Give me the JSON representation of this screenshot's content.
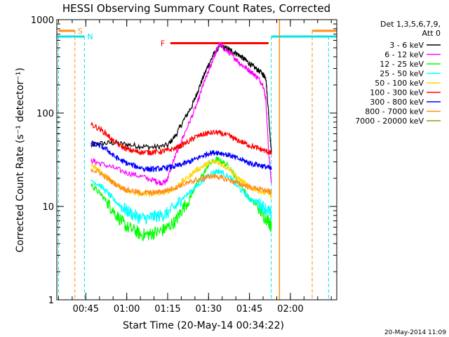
{
  "chart_data": {
    "type": "line",
    "title": "HESSI Observing Summary Count Rates, Corrected",
    "xlabel": "Start Time (20-May-14 00:34:22)",
    "ylabel": "Corrected Count Rate (s⁻¹ detector⁻¹)",
    "yscale": "log",
    "ylim": [
      1,
      1000
    ],
    "xlim_minutes": [
      34.3667,
      137
    ],
    "x_tick_values": [
      45,
      60,
      75,
      90,
      105,
      120
    ],
    "x_tick_labels": [
      "00:45",
      "01:00",
      "01:15",
      "01:30",
      "01:45",
      "02:00"
    ],
    "y_tick_values": [
      1,
      10,
      100,
      1000
    ],
    "y_tick_labels": [
      "1",
      "10",
      "100",
      "1000"
    ],
    "grid": false,
    "legend_position": "right",
    "legend_header": [
      "Det 1,3,5,6,7,9,",
      "Att 0"
    ],
    "timestamp": "20-May-2014 11:09",
    "series": [
      {
        "name": "3 - 6 keV",
        "color": "#000000",
        "x": [
          47,
          50,
          55,
          60,
          65,
          70,
          75,
          78,
          81,
          84,
          86,
          88,
          90,
          92,
          94,
          96,
          98,
          100,
          102,
          104,
          106,
          108,
          110,
          111,
          112,
          113
        ],
        "y": [
          45,
          47,
          48,
          46,
          44,
          43,
          45,
          58,
          85,
          120,
          170,
          240,
          330,
          430,
          520,
          500,
          470,
          440,
          400,
          360,
          320,
          290,
          260,
          240,
          100,
          38
        ]
      },
      {
        "name": "6 - 12 keV",
        "color": "#ff00ff",
        "x": [
          47,
          50,
          55,
          60,
          65,
          70,
          72,
          74,
          75,
          77,
          80,
          83,
          86,
          88,
          90,
          92,
          94,
          96,
          98,
          100,
          102,
          104,
          106,
          108,
          110,
          111,
          112,
          113
        ],
        "y": [
          31,
          29,
          26,
          23,
          21,
          19,
          18,
          18,
          20,
          30,
          50,
          80,
          130,
          200,
          280,
          400,
          550,
          480,
          430,
          380,
          330,
          300,
          270,
          240,
          200,
          140,
          40,
          18
        ]
      },
      {
        "name": "12 - 25 keV",
        "color": "#00ff00",
        "x": [
          47,
          50,
          53,
          55,
          58,
          60,
          63,
          65,
          68,
          70,
          73,
          75,
          78,
          80,
          83,
          85,
          88,
          90,
          93,
          95,
          98,
          100,
          103,
          105,
          108,
          110,
          112,
          113
        ],
        "y": [
          17,
          14,
          11,
          9,
          7,
          6,
          5.5,
          5,
          5,
          5.2,
          5.5,
          6,
          7,
          9,
          12,
          16,
          22,
          28,
          32,
          30,
          26,
          20,
          15,
          12,
          10,
          8,
          7,
          6
        ]
      },
      {
        "name": "25 - 50 keV",
        "color": "#00ffff",
        "x": [
          47,
          50,
          53,
          55,
          58,
          60,
          63,
          65,
          68,
          70,
          73,
          75,
          78,
          80,
          83,
          85,
          88,
          90,
          93,
          95,
          98,
          100,
          103,
          105,
          108,
          110,
          112,
          113
        ],
        "y": [
          19,
          17,
          14,
          12,
          10,
          9,
          8,
          7.5,
          7.5,
          7.8,
          8,
          8.5,
          10,
          12,
          14,
          16,
          19,
          22,
          24,
          23,
          20,
          17,
          14,
          12,
          11,
          10,
          9,
          8
        ]
      },
      {
        "name": "50 - 100 keV",
        "color": "#ffd700",
        "x": [
          47,
          50,
          53,
          55,
          58,
          60,
          63,
          65,
          68,
          70,
          73,
          75,
          78,
          80,
          83,
          85,
          88,
          90,
          93,
          95,
          98,
          100,
          103,
          105,
          108,
          110,
          112,
          113
        ],
        "y": [
          28,
          24,
          20,
          18,
          16,
          15,
          14,
          13.5,
          13.5,
          13.8,
          14,
          14.5,
          16,
          18,
          21,
          24,
          27,
          29,
          30,
          28,
          25,
          21,
          18,
          16,
          15,
          14,
          14,
          13
        ]
      },
      {
        "name": "100 - 300 keV",
        "color": "#ff0000",
        "x": [
          47,
          50,
          53,
          55,
          58,
          60,
          63,
          65,
          68,
          70,
          73,
          75,
          78,
          80,
          83,
          85,
          88,
          90,
          93,
          95,
          98,
          100,
          103,
          105,
          108,
          110,
          112,
          113
        ],
        "y": [
          75,
          68,
          58,
          50,
          44,
          41,
          39,
          38,
          38,
          38,
          39,
          40,
          42,
          45,
          50,
          55,
          59,
          61,
          62,
          60,
          56,
          52,
          48,
          45,
          42,
          40,
          38,
          37
        ]
      },
      {
        "name": "300 - 800 keV",
        "color": "#0000ff",
        "x": [
          47,
          50,
          53,
          55,
          58,
          60,
          63,
          65,
          68,
          70,
          73,
          75,
          78,
          80,
          83,
          85,
          88,
          90,
          93,
          95,
          98,
          100,
          103,
          105,
          108,
          110,
          112,
          113
        ],
        "y": [
          47,
          45,
          40,
          35,
          31,
          29,
          27,
          26,
          25,
          25,
          25.5,
          26,
          27,
          28,
          30,
          32,
          35,
          37,
          38,
          37,
          35,
          33,
          31,
          29,
          28,
          27,
          26,
          25
        ]
      },
      {
        "name": "800 - 7000 keV",
        "color": "#ff8c1a",
        "x": [
          47,
          50,
          53,
          55,
          58,
          60,
          63,
          65,
          68,
          70,
          73,
          75,
          78,
          80,
          83,
          85,
          88,
          90,
          93,
          95,
          98,
          100,
          103,
          105,
          108,
          110,
          112,
          113
        ],
        "y": [
          25,
          23,
          20,
          18,
          16,
          15,
          14.5,
          14,
          14,
          14,
          14.5,
          15,
          16,
          17,
          18,
          19,
          20,
          21,
          21,
          20,
          19,
          18,
          17,
          16,
          15.5,
          15,
          14.5,
          14
        ]
      },
      {
        "name": "7000 - 20000 keV",
        "color": "#9a9a00",
        "x": [],
        "y": []
      }
    ],
    "annotations": [
      {
        "label": "S",
        "color": "#ff8c1a",
        "bars": [
          [
            35,
            41
          ],
          [
            128,
            137
          ]
        ],
        "bar_y": 760,
        "vlines": [
          41,
          128
        ]
      },
      {
        "label": "N",
        "color": "#00e5e5",
        "bars": [
          [
            34.5,
            44.5
          ],
          [
            113,
            137
          ]
        ],
        "bar_y": 660,
        "vlines": [
          35,
          44.5,
          113,
          134
        ]
      },
      {
        "label": "F",
        "color": "#ff0000",
        "bars": [
          [
            76,
            112
          ]
        ],
        "bar_y": 560,
        "vlines": []
      }
    ],
    "extra_vlines": [
      {
        "color": "#ff8c1a",
        "x": 116
      }
    ]
  }
}
